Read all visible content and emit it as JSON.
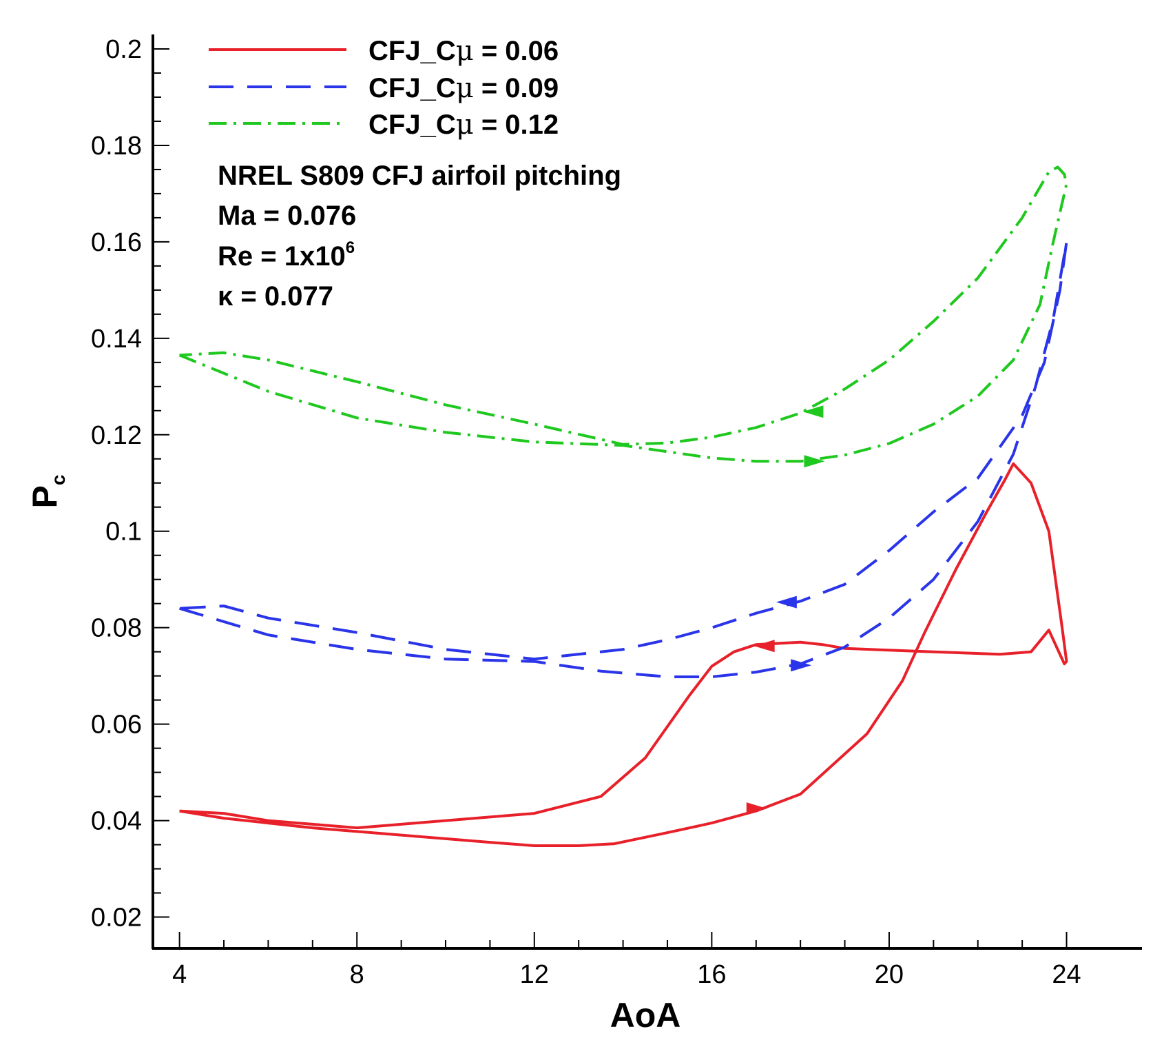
{
  "chart_data": {
    "type": "line",
    "title": "",
    "xlabel": "AoA",
    "ylabel_main": "P",
    "ylabel_sub": "c",
    "xlim": [
      3.4,
      25.7
    ],
    "ylim": [
      0.0135,
      0.203
    ],
    "x_ticks": [
      4,
      8,
      12,
      16,
      20,
      24
    ],
    "x_tick_labels": [
      "4",
      "8",
      "12",
      "16",
      "20",
      "24"
    ],
    "y_ticks": [
      0.02,
      0.04,
      0.06,
      0.08,
      0.1,
      0.12,
      0.14,
      0.16,
      0.18,
      0.2
    ],
    "y_tick_labels": [
      "0.02",
      "0.04",
      "0.06",
      "0.08",
      "0.1",
      "0.12",
      "0.14",
      "0.16",
      "0.18",
      "0.2"
    ],
    "grid": false,
    "legend_position": "top-left",
    "annotations": [
      {
        "text": "NREL S809 CFJ airfoil pitching"
      },
      {
        "text": "Ma = 0.076"
      },
      {
        "text": "Re = 1x10",
        "sup": "6"
      },
      {
        "text": "κ = 0.077"
      }
    ],
    "series": [
      {
        "name": "CFJ_Cμ = 0.06",
        "label_prefix": "CFJ_C",
        "label_symbol": "μ",
        "label_value": "= 0.06",
        "color": "#e8202a",
        "dash": "solid",
        "x": [
          4,
          5,
          7,
          9,
          11,
          12,
          13,
          13.8,
          15,
          16,
          17,
          18,
          19.5,
          20.3,
          20.8,
          21.5,
          22.2,
          22.6,
          22.8,
          23.2,
          23.6,
          23.9,
          24,
          23.95,
          23.6,
          23.2,
          22.5,
          21,
          19,
          18.5,
          18,
          17,
          16.5,
          16,
          15.5,
          14.5,
          13.5,
          12,
          10,
          8,
          6,
          5,
          4
        ],
        "y": [
          0.042,
          0.0405,
          0.0385,
          0.037,
          0.0355,
          0.0348,
          0.0348,
          0.0352,
          0.0375,
          0.0395,
          0.042,
          0.0455,
          0.058,
          0.069,
          0.079,
          0.092,
          0.104,
          0.1105,
          0.114,
          0.11,
          0.1,
          0.08,
          0.073,
          0.0725,
          0.0795,
          0.075,
          0.0745,
          0.075,
          0.0757,
          0.0765,
          0.077,
          0.0765,
          0.075,
          0.072,
          0.066,
          0.053,
          0.045,
          0.0415,
          0.04,
          0.0385,
          0.04,
          0.0415,
          0.042
        ],
        "arrows": [
          {
            "x": 17.0,
            "y": 0.0425,
            "dir": "right"
          },
          {
            "x": 17.2,
            "y": 0.0762,
            "dir": "left"
          }
        ]
      },
      {
        "name": "CFJ_Cμ = 0.09",
        "label_prefix": "CFJ_C",
        "label_symbol": "μ",
        "label_value": "= 0.09",
        "color": "#2a34e8",
        "dash": "long-dash",
        "x": [
          4,
          6,
          8,
          10,
          12,
          13.5,
          15,
          16,
          17,
          18,
          19,
          20,
          21,
          22,
          22.8,
          23.3,
          23.7,
          24,
          23.85,
          23.5,
          23,
          22,
          21,
          20,
          19,
          18,
          17,
          16,
          15,
          14,
          12,
          10,
          8,
          6,
          5,
          4
        ],
        "y": [
          0.084,
          0.0785,
          0.0755,
          0.0735,
          0.073,
          0.071,
          0.0698,
          0.0698,
          0.0708,
          0.0725,
          0.076,
          0.082,
          0.09,
          0.102,
          0.116,
          0.13,
          0.144,
          0.16,
          0.15,
          0.135,
          0.124,
          0.111,
          0.104,
          0.096,
          0.089,
          0.0855,
          0.083,
          0.08,
          0.0775,
          0.0755,
          0.0735,
          0.0755,
          0.079,
          0.082,
          0.0845,
          0.084
        ],
        "arrows": [
          {
            "x": 18.0,
            "y": 0.0722,
            "dir": "right"
          },
          {
            "x": 17.7,
            "y": 0.0853,
            "dir": "left"
          }
        ]
      },
      {
        "name": "CFJ_Cμ = 0.12",
        "label_prefix": "CFJ_C",
        "label_symbol": "μ",
        "label_value": "= 0.12",
        "color": "#1ec81e",
        "dash": "dash-dot",
        "x": [
          4,
          6,
          8,
          10,
          12,
          14,
          16,
          17,
          18,
          19,
          20,
          21,
          22,
          22.8,
          23.4,
          23.7,
          24,
          23.95,
          23.8,
          23.6,
          23,
          22,
          21,
          20,
          19,
          18,
          17,
          16,
          15,
          14,
          12,
          10,
          8,
          6,
          5,
          4
        ],
        "y": [
          0.1365,
          0.129,
          0.1235,
          0.1205,
          0.1185,
          0.1178,
          0.1152,
          0.1145,
          0.1145,
          0.1158,
          0.1182,
          0.1222,
          0.128,
          0.1355,
          0.147,
          0.16,
          0.172,
          0.174,
          0.1755,
          0.1745,
          0.165,
          0.1525,
          0.1435,
          0.1355,
          0.1295,
          0.1245,
          0.1215,
          0.1195,
          0.1183,
          0.118,
          0.1222,
          0.1262,
          0.131,
          0.1355,
          0.137,
          0.1365
        ],
        "arrows": [
          {
            "x": 18.3,
            "y": 0.1145,
            "dir": "right"
          },
          {
            "x": 18.3,
            "y": 0.1248,
            "dir": "left"
          }
        ]
      }
    ]
  }
}
